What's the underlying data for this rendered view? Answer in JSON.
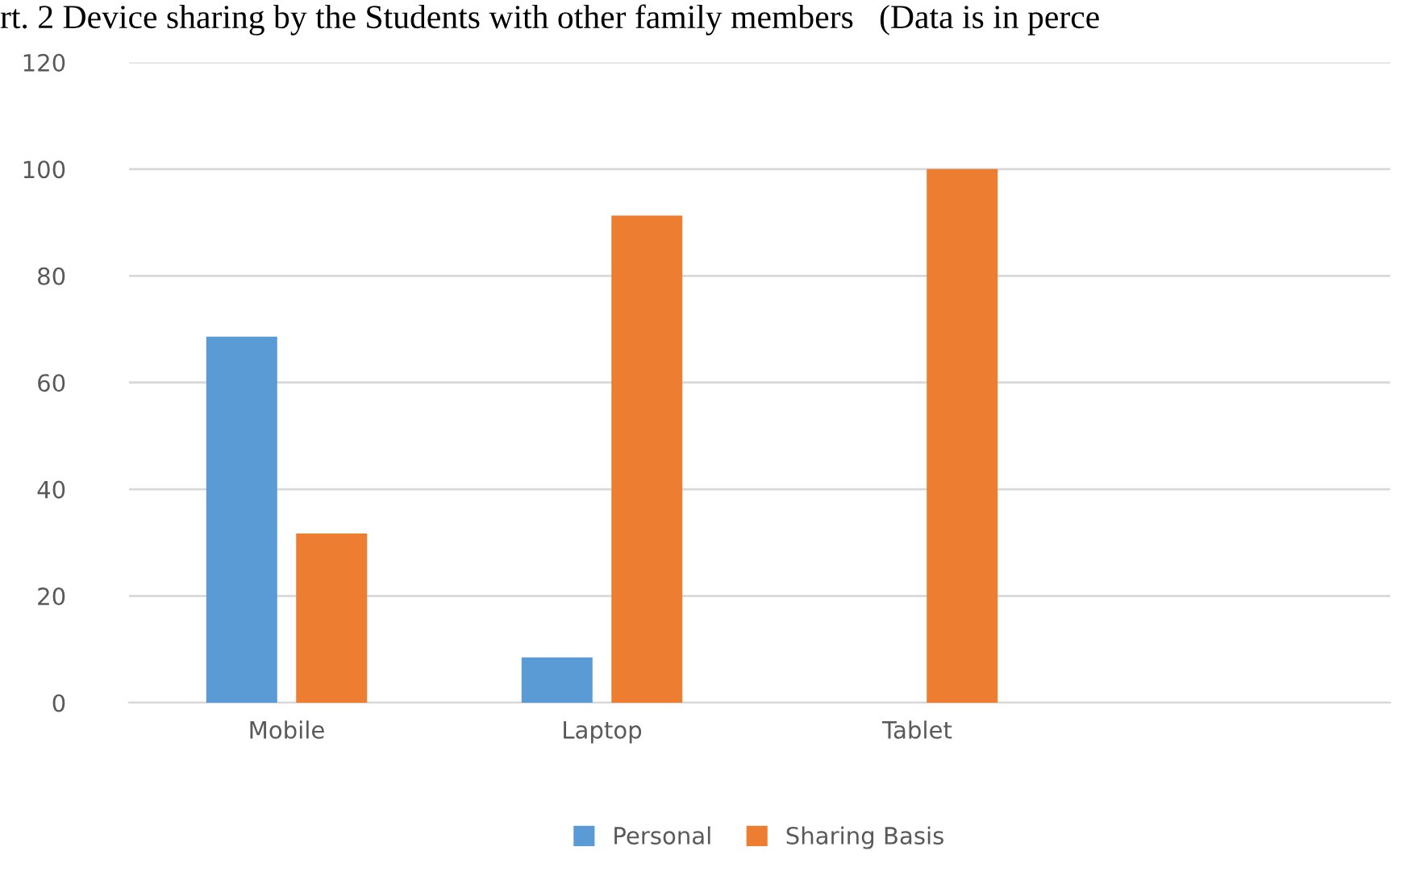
{
  "chart_data": {
    "type": "bar",
    "title": "rt. 2 Device sharing by the Students with other family members   (Data is in perce",
    "categories": [
      "Mobile",
      "Laptop",
      "Tablet",
      null
    ],
    "series": [
      {
        "name": "Personal",
        "color": "#5b9bd5",
        "values": [
          68.6,
          8.5,
          null,
          null
        ]
      },
      {
        "name": "Sharing Basis",
        "color": "#ed7d31",
        "values": [
          31.7,
          91.3,
          100,
          null
        ]
      }
    ],
    "ylim": [
      0,
      120
    ],
    "yticks": [
      0,
      20,
      40,
      60,
      80,
      100,
      120
    ],
    "grid": "y",
    "legend": "bottom"
  }
}
